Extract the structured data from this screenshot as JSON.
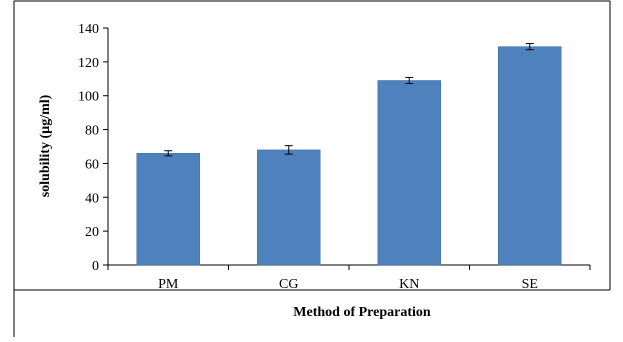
{
  "chart_data": {
    "type": "bar",
    "categories": [
      "PM",
      "CG",
      "KN",
      "SE"
    ],
    "values": [
      66,
      68,
      109,
      129
    ],
    "error": [
      1.5,
      2.5,
      1.8,
      1.8
    ],
    "xlabel": "Method of Preparation",
    "ylabel": "solubility (µg/ml)",
    "ylim": [
      0,
      140
    ],
    "yticks": [
      "0",
      "20",
      "40",
      "60",
      "80",
      "100",
      "120",
      "140"
    ],
    "grid": false,
    "legend": "none",
    "colors": {
      "bar": "#4f81bd",
      "bar_edge": "#3f6fa8",
      "axis": "#000000",
      "frame": "#000000"
    }
  }
}
